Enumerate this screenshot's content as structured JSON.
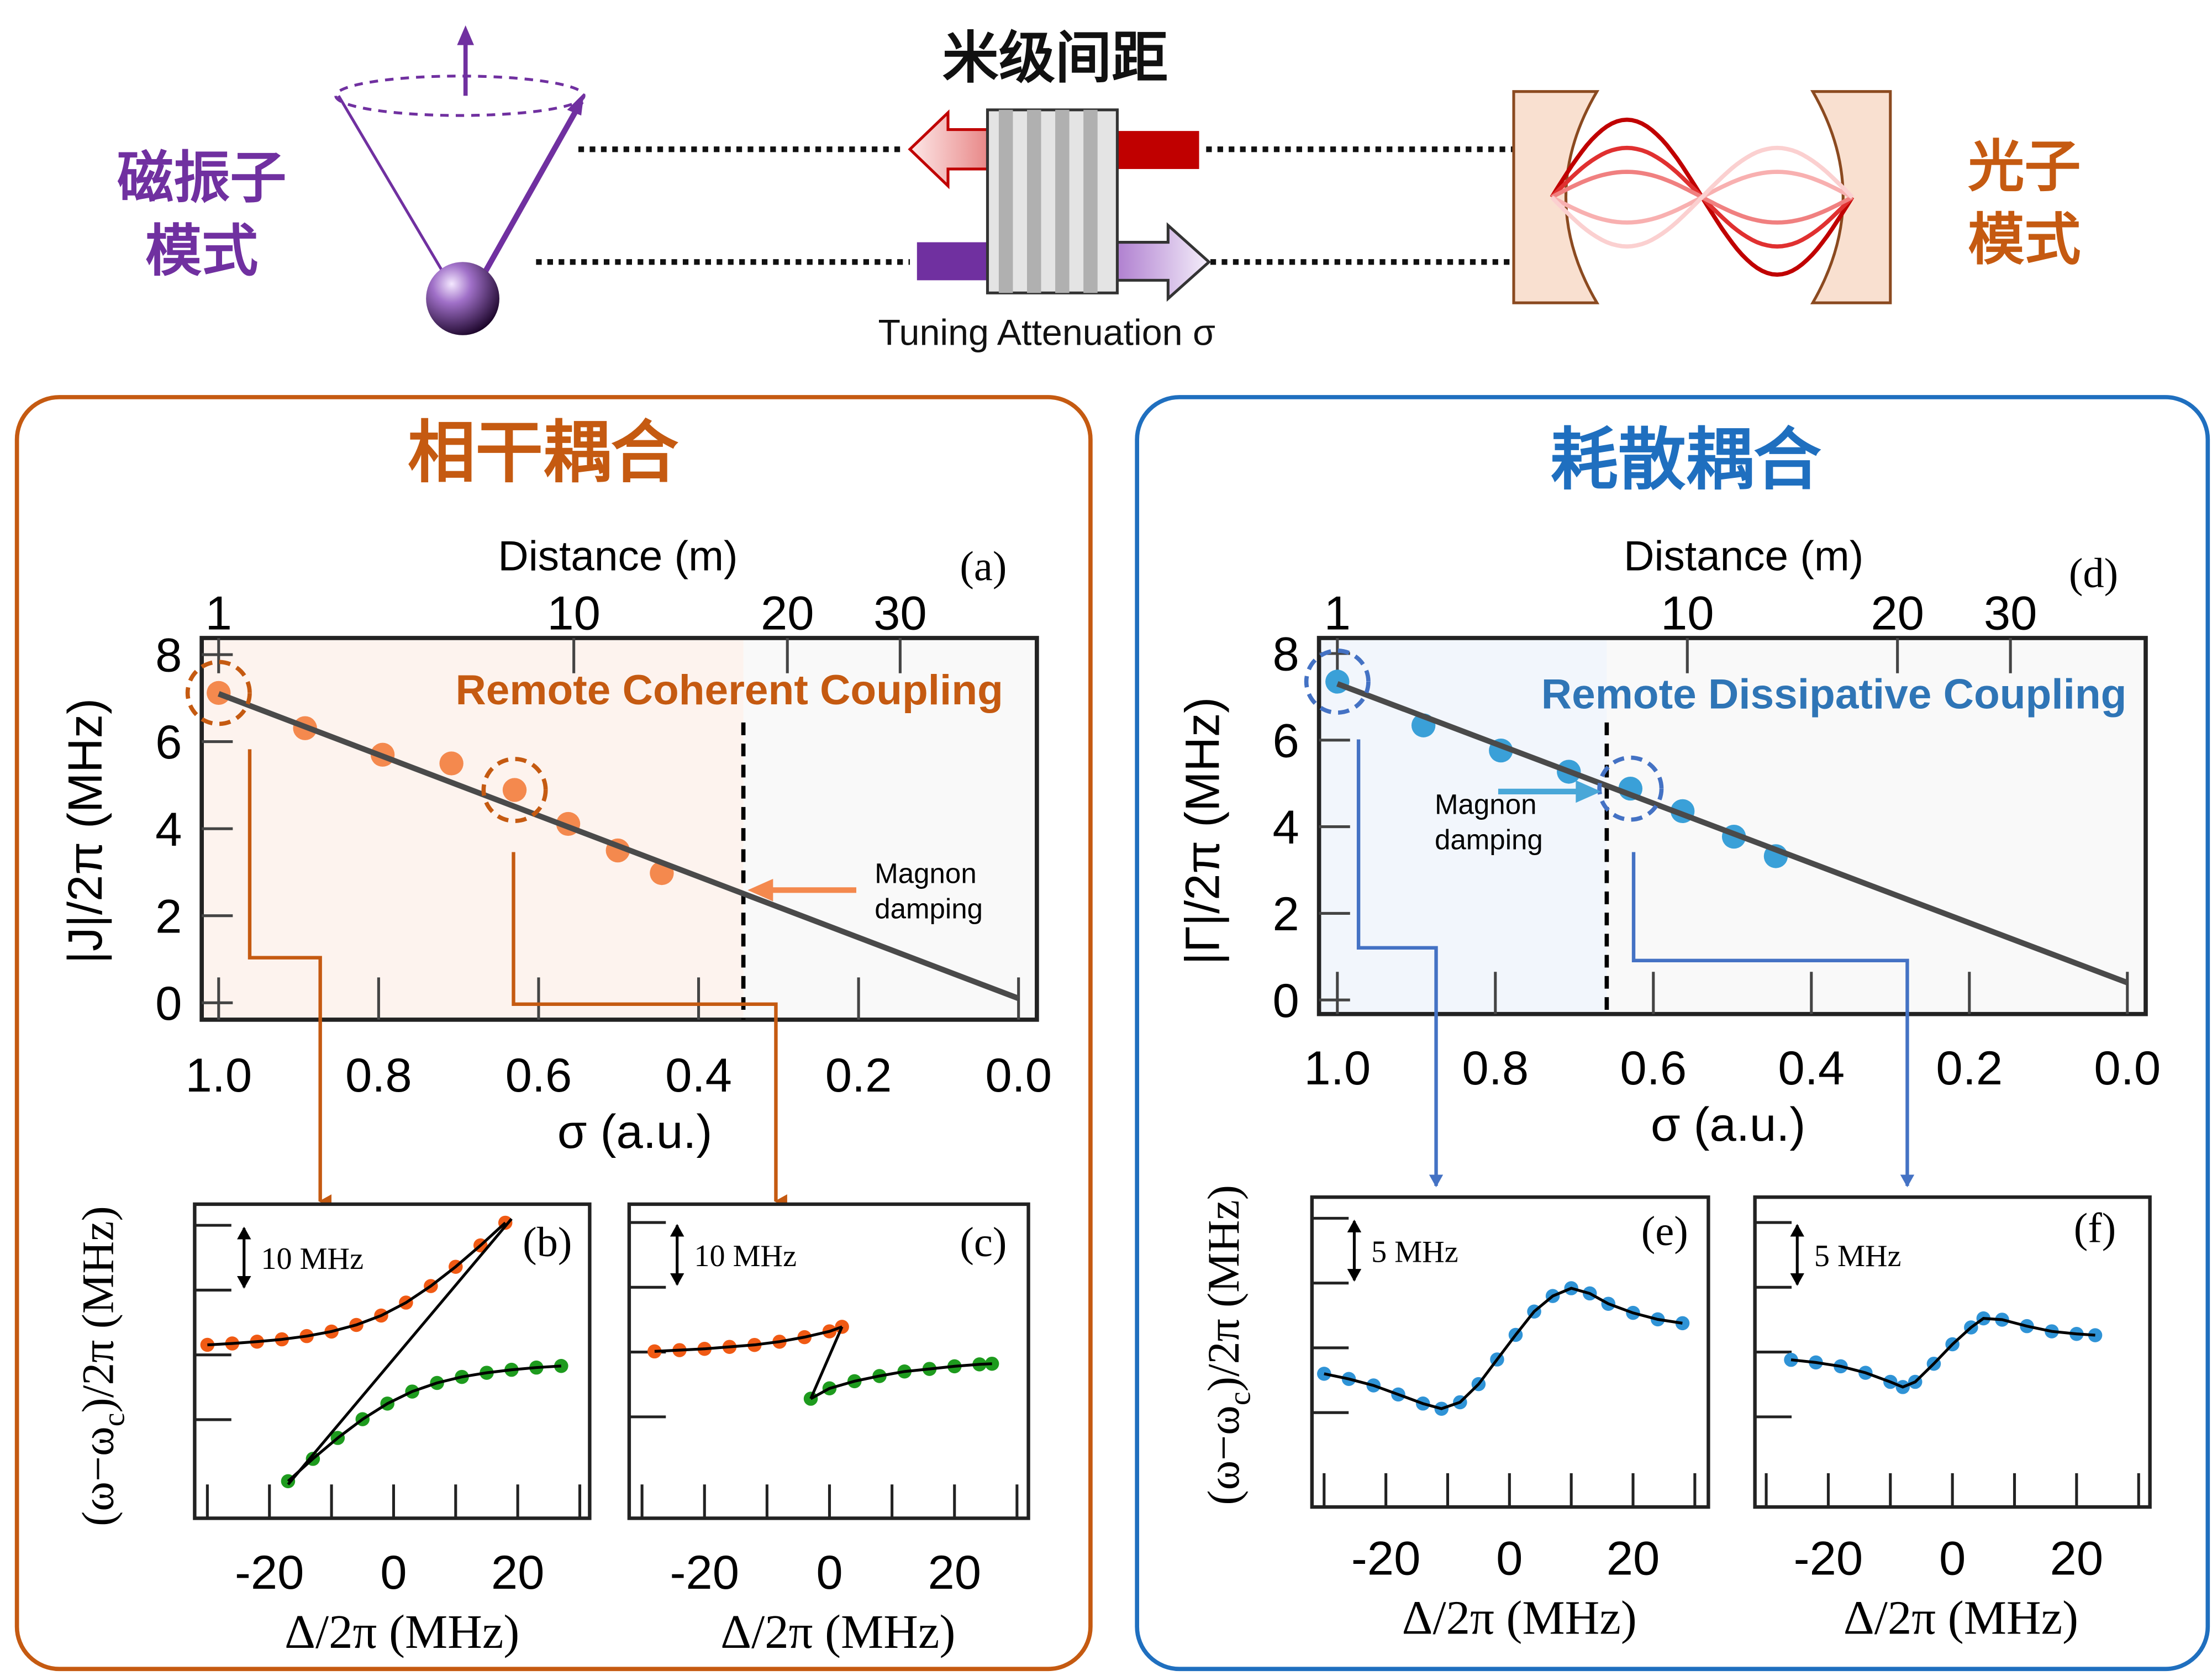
{
  "schematic": {
    "magnon_label_1": "磁振子",
    "magnon_label_2": "模式",
    "photon_label_1": "光子",
    "photon_label_2": "模式",
    "distance_label": "米级间距",
    "attenuator_label": "Tuning Attenuation σ",
    "colors": {
      "magnon": "#7030a0",
      "photon": "#c55a11",
      "wave_red": "#c00000"
    }
  },
  "panels": {
    "coherent_title": "相干耦合",
    "dissipative_title": "耗散耦合",
    "colors": {
      "coherent": "#c55a11",
      "dissipative": "#1f6fbf"
    }
  },
  "chart_data": [
    {
      "id": "a",
      "type": "scatter",
      "panel_label": "(a)",
      "annotation": "Remote Coherent Coupling",
      "damping_label_1": "Magnon",
      "damping_label_2": "damping",
      "xlabel": "σ (a.u.)",
      "ylabel": "|J|/2π (MHz)",
      "xlim": [
        1.0,
        0.0
      ],
      "ylim": [
        0,
        8
      ],
      "xticks": [
        "1.0",
        "0.8",
        "0.6",
        "0.4",
        "0.2",
        "0.0"
      ],
      "yticks": [
        "0",
        "2",
        "4",
        "6",
        "8"
      ],
      "top_axis": {
        "label": "Distance (m)",
        "ticks": [
          {
            "label": "1",
            "sigma": 1.0
          },
          {
            "label": "10",
            "sigma": 0.556
          },
          {
            "label": "20",
            "sigma": 0.289
          },
          {
            "label": "30",
            "sigma": 0.148
          }
        ]
      },
      "x": [
        1.0,
        0.892,
        0.795,
        0.709,
        0.63,
        0.563,
        0.501,
        0.446
      ],
      "y": [
        7.12,
        6.31,
        5.7,
        5.5,
        4.89,
        4.11,
        3.5,
        2.98
      ],
      "fit_line": [
        [
          1.0,
          7.1
        ],
        [
          0.0,
          0.1
        ]
      ],
      "magnon_damping_sigma": 0.344,
      "highlighted_points": [
        0,
        4
      ],
      "point_color": "#f4894e"
    },
    {
      "id": "d",
      "type": "scatter",
      "panel_label": "(d)",
      "annotation": "Remote Dissipative Coupling",
      "damping_label_1": "Magnon",
      "damping_label_2": "damping",
      "xlabel": "σ (a.u.)",
      "ylabel": "|Γ|/2π (MHz)",
      "xlim": [
        1.0,
        0.0
      ],
      "ylim": [
        0,
        8
      ],
      "xticks": [
        "1.0",
        "0.8",
        "0.6",
        "0.4",
        "0.2",
        "0.0"
      ],
      "yticks": [
        "0",
        "2",
        "4",
        "6",
        "8"
      ],
      "top_axis": {
        "label": "Distance (m)",
        "ticks": [
          {
            "label": "1",
            "sigma": 1.0
          },
          {
            "label": "10",
            "sigma": 0.557
          },
          {
            "label": "20",
            "sigma": 0.291
          },
          {
            "label": "30",
            "sigma": 0.148
          }
        ]
      },
      "x": [
        1.0,
        0.891,
        0.793,
        0.707,
        0.629,
        0.563,
        0.498,
        0.445
      ],
      "y": [
        7.35,
        6.34,
        5.76,
        5.27,
        4.88,
        4.36,
        3.77,
        3.32
      ],
      "fit_line": [
        [
          1.0,
          7.3
        ],
        [
          0.0,
          0.4
        ]
      ],
      "magnon_damping_sigma": 0.659,
      "highlighted_points": [
        0,
        4
      ],
      "point_color": "#3aa0d8"
    },
    {
      "id": "b",
      "type": "scatter",
      "panel_label": "(b)",
      "scale_bar": "10 MHz",
      "scale_bar_range": [
        10,
        20
      ],
      "xlabel": "Δ/2π  (MHz)",
      "ylabel_parts": [
        "(ω−ω",
        "c",
        ")/2π  (MHz)"
      ],
      "xticks": [
        -20,
        0,
        20
      ],
      "xtick_labels": [
        "-20",
        "0",
        "20"
      ],
      "yticks_unlabeled": [
        -10,
        0,
        10,
        20
      ],
      "series": [
        {
          "color": "#f05a14",
          "x": [
            -30,
            -26,
            -22,
            -18,
            -14,
            -10,
            -6,
            -2,
            2,
            6,
            10,
            14,
            18
          ],
          "y": [
            1.55,
            1.76,
            2.04,
            2.4,
            2.9,
            3.6,
            4.62,
            6.07,
            8.07,
            10.62,
            13.6,
            16.9,
            20.4
          ]
        },
        {
          "color": "#1e9b1e",
          "x": [
            -17,
            -13,
            -9,
            -5,
            -1,
            3,
            7,
            11,
            15,
            19,
            23,
            27
          ],
          "y": [
            -19.5,
            -16.05,
            -12.82,
            -9.93,
            -7.52,
            -5.66,
            -4.33,
            -3.4,
            -2.76,
            -2.3,
            -1.96,
            -1.71
          ]
        }
      ],
      "extra_line": [
        [
          -17,
          -20
        ],
        [
          19,
          21
        ]
      ]
    },
    {
      "id": "c",
      "type": "scatter",
      "panel_label": "(c)",
      "scale_bar": "10 MHz",
      "scale_bar_range": [
        10,
        20
      ],
      "xlabel": "Δ/2π  (MHz)",
      "ylabel_parts": [
        "",
        "",
        ""
      ],
      "xticks": [
        -20,
        0,
        20
      ],
      "xtick_labels": [
        "-20",
        "0",
        "20"
      ],
      "yticks_unlabeled": [
        -10,
        0,
        10,
        20
      ],
      "series": [
        {
          "color": "#f05a14",
          "x": [
            -28,
            -24,
            -20,
            -16,
            -12,
            -8,
            -4,
            0,
            2
          ],
          "y": [
            0.1,
            0.3,
            0.5,
            0.8,
            1.1,
            1.6,
            2.3,
            3.2,
            3.9
          ]
        },
        {
          "color": "#1e9b1e",
          "x": [
            -3,
            0,
            4,
            8,
            12,
            16,
            20,
            24,
            26
          ],
          "y": [
            -7.2,
            -5.6,
            -4.5,
            -3.7,
            -3.0,
            -2.6,
            -2.2,
            -1.9,
            -1.8
          ]
        }
      ],
      "extra_line": [
        [
          2,
          3.9
        ],
        [
          -3,
          -7.2
        ]
      ]
    },
    {
      "id": "e",
      "type": "scatter",
      "panel_label": "(e)",
      "scale_bar": "5 MHz",
      "scale_bar_range": [
        5,
        10
      ],
      "xlabel": "Δ/2π  (MHz)",
      "ylabel_parts": [
        "(ω−ω",
        "c",
        ")/2π  (MHz)"
      ],
      "xticks": [
        -20,
        0,
        20
      ],
      "xtick_labels": [
        "-20",
        "0",
        "20"
      ],
      "yticks_unlabeled": [
        -5,
        0,
        5,
        10
      ],
      "series": [
        {
          "color": "#2f93d6",
          "x": [
            -30,
            -26,
            -22,
            -18,
            -14,
            -11,
            -8,
            -5,
            -2,
            1,
            4,
            7,
            10,
            13,
            16,
            20,
            24,
            28
          ],
          "y": [
            -2.0,
            -2.4,
            -2.9,
            -3.6,
            -4.3,
            -4.7,
            -4.2,
            -2.8,
            -0.9,
            1.0,
            2.8,
            4.0,
            4.6,
            4.2,
            3.4,
            2.7,
            2.2,
            1.9
          ]
        }
      ]
    },
    {
      "id": "f",
      "type": "scatter",
      "panel_label": "(f)",
      "scale_bar": "5 MHz",
      "scale_bar_range": [
        5,
        10
      ],
      "xlabel": "Δ/2π  (MHz)",
      "ylabel_parts": [
        "",
        "",
        ""
      ],
      "xticks": [
        -20,
        0,
        20
      ],
      "xtick_labels": [
        "-20",
        "0",
        "20"
      ],
      "yticks_unlabeled": [
        -5,
        0,
        5,
        10
      ],
      "series": [
        {
          "color": "#2f93d6",
          "x": [
            -26,
            -22,
            -18,
            -14,
            -10,
            -8,
            -6,
            -3,
            0,
            3,
            5,
            8,
            12,
            16,
            20,
            23
          ],
          "y": [
            -0.6,
            -0.8,
            -1.1,
            -1.6,
            -2.3,
            -2.7,
            -2.3,
            -0.9,
            0.6,
            1.9,
            2.6,
            2.5,
            2.0,
            1.6,
            1.4,
            1.3
          ]
        }
      ]
    }
  ]
}
